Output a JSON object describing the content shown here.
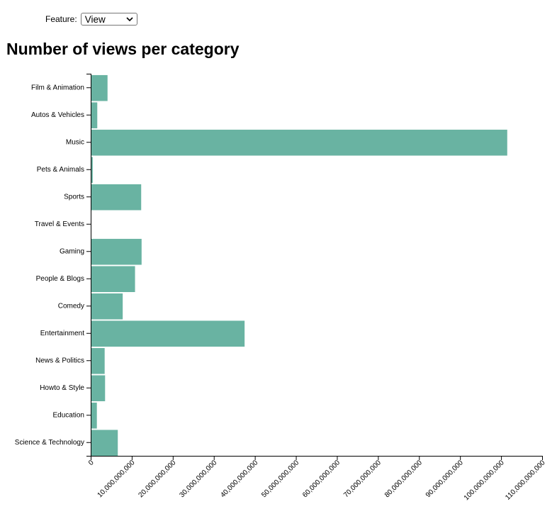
{
  "controls": {
    "feature_label": "Feature:",
    "feature_selected": "View"
  },
  "chart_data": {
    "type": "bar",
    "orientation": "horizontal",
    "title": "Number of views per category",
    "categories": [
      "Film & Animation",
      "Autos & Vehicles",
      "Music",
      "Pets & Animals",
      "Sports",
      "Travel & Events",
      "Gaming",
      "People & Blogs",
      "Comedy",
      "Entertainment",
      "News & Politics",
      "Howto & Style",
      "Education",
      "Science & Technology"
    ],
    "values": [
      4100000000,
      1600000000,
      101500000000,
      500000000,
      12300000000,
      150000000,
      12400000000,
      10800000000,
      7800000000,
      37500000000,
      3400000000,
      3500000000,
      1500000000,
      6600000000
    ],
    "xlim": [
      0,
      110000000000
    ],
    "xticks": [
      "0",
      "10,000,000,000",
      "20,000,000,000",
      "30,000,000,000",
      "40,000,000,000",
      "50,000,000,000",
      "60,000,000,000",
      "70,000,000,000",
      "80,000,000,000",
      "90,000,000,000",
      "100,000,000,000",
      "110,000,000,000"
    ],
    "bar_color": "#69b3a2",
    "grid": false
  }
}
